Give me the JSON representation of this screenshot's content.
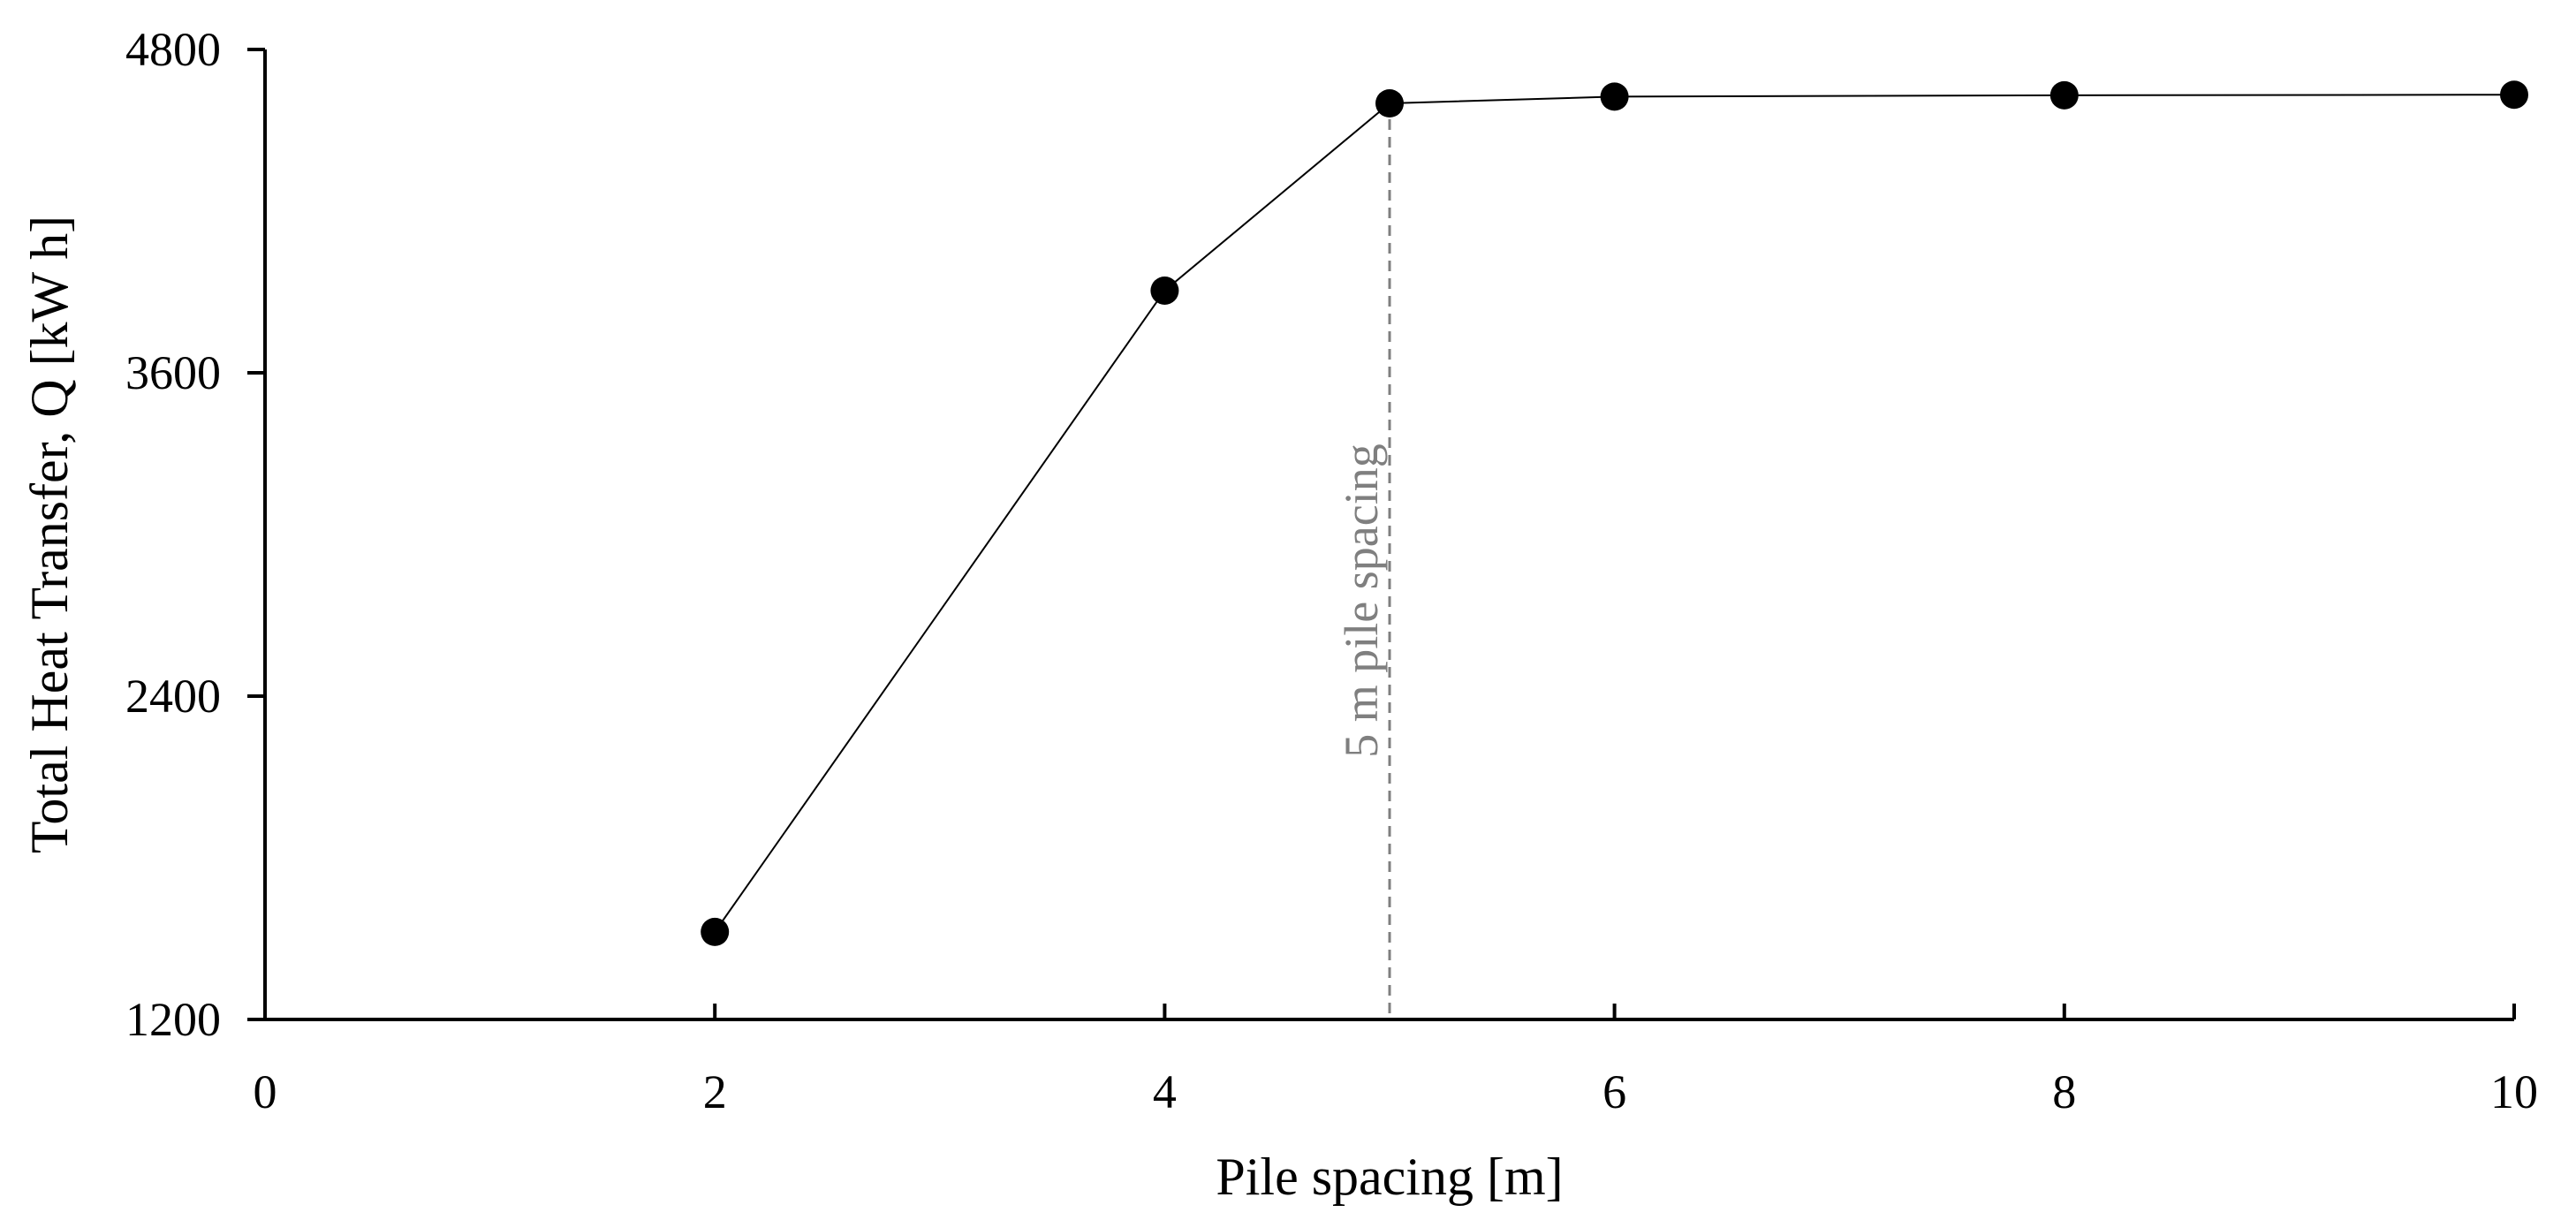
{
  "chart_data": {
    "type": "line",
    "title": "",
    "xlabel": "Pile spacing [m]",
    "ylabel": "Total Heat Transfer, Q [kW h]",
    "xlim": [
      0,
      10
    ],
    "ylim": [
      1200,
      4800
    ],
    "xticks": [
      0,
      2,
      4,
      6,
      8,
      10
    ],
    "yticks": [
      1200,
      2400,
      3600,
      4800
    ],
    "xtick_labels": [
      "0",
      "2",
      "4",
      "6",
      "8",
      "10"
    ],
    "ytick_labels": [
      "1200",
      "2400",
      "3600",
      "4800"
    ],
    "grid": false,
    "legend": "none",
    "series": [
      {
        "x": [
          2,
          4,
          5,
          6,
          8,
          10
        ],
        "y": [
          1525,
          3905,
          4600,
          4625,
          4630,
          4632
        ],
        "color": "#000000",
        "marker": "circle"
      }
    ],
    "annotations": [
      {
        "type": "vertical-dashed-line",
        "x": 5,
        "text": "5 m pile spacing",
        "color": "#7f7f7f"
      }
    ]
  }
}
